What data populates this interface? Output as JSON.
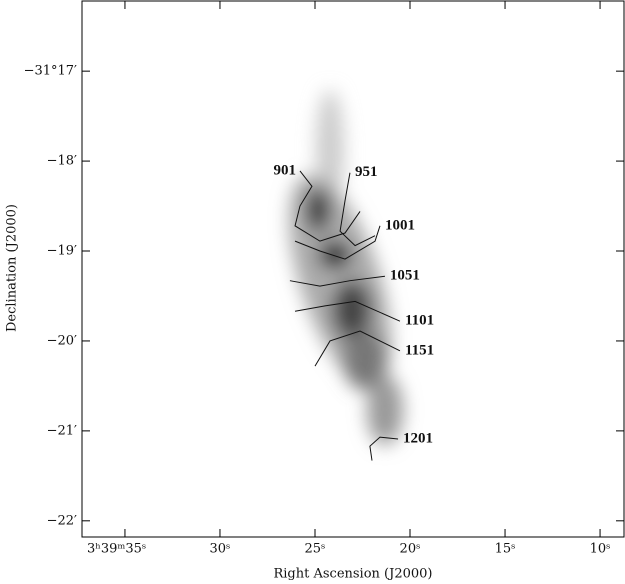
{
  "chart_data": {
    "type": "contour",
    "x_label": "Right Ascension (J2000)",
    "y_label": "Declination (J2000)",
    "xlim": [
      37.26,
      8.74
    ],
    "ylim": [
      -22.18,
      -16.22
    ],
    "xticks": [
      {
        "value": 35,
        "label": "3ʰ39ᵐ35ˢ"
      },
      {
        "value": 30,
        "label": "30ˢ"
      },
      {
        "value": 25,
        "label": "25ˢ"
      },
      {
        "value": 20,
        "label": "20ˢ"
      },
      {
        "value": 15,
        "label": "15ˢ"
      },
      {
        "value": 10,
        "label": "10ˢ"
      }
    ],
    "yticks": [
      {
        "value": -17,
        "label": "−31°17′"
      },
      {
        "value": -18,
        "label": "−18′"
      },
      {
        "value": -19,
        "label": "−19′"
      },
      {
        "value": -20,
        "label": "−20′"
      },
      {
        "value": -21,
        "label": "−21′"
      },
      {
        "value": -22,
        "label": "−22′"
      }
    ],
    "color": "#111111",
    "contours": [
      {
        "level": 901,
        "x": [
          25.79,
          25.16,
          25.79,
          26.05,
          24.74,
          23.42,
          22.63
        ],
        "y": [
          -18.11,
          -18.28,
          -18.5,
          -18.72,
          -18.89,
          -18.8,
          -18.56
        ]
      },
      {
        "level": 951,
        "x": [
          23.16,
          23.42,
          23.68,
          22.89,
          21.84
        ],
        "y": [
          -18.13,
          -18.44,
          -18.78,
          -18.94,
          -18.83
        ]
      },
      {
        "level": 1001,
        "x": [
          21.58,
          21.84,
          23.42,
          24.74,
          26.05
        ],
        "y": [
          -18.72,
          -18.89,
          -19.09,
          -19.0,
          -18.89
        ]
      },
      {
        "level": 1051,
        "x": [
          21.32,
          23.16,
          24.74,
          26.32
        ],
        "y": [
          -19.28,
          -19.33,
          -19.39,
          -19.33
        ]
      },
      {
        "level": 1101,
        "x": [
          20.53,
          22.89,
          24.47,
          26.05
        ],
        "y": [
          -19.78,
          -19.56,
          -19.61,
          -19.67
        ]
      },
      {
        "level": 1151,
        "x": [
          20.53,
          22.63,
          24.21,
          25.0
        ],
        "y": [
          -20.11,
          -19.89,
          -20.0,
          -20.28
        ]
      },
      {
        "level": 1201,
        "x": [
          20.63,
          21.58,
          22.11,
          22.0
        ],
        "y": [
          -21.09,
          -21.07,
          -21.17,
          -21.33
        ]
      }
    ]
  }
}
